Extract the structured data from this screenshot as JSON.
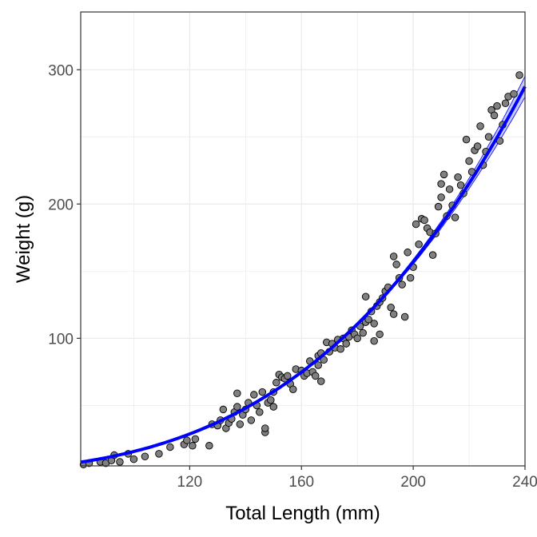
{
  "chart_data": {
    "type": "scatter",
    "title": "",
    "xlabel": "Total Length (mm)",
    "ylabel": "Weight (g)",
    "xlim": [
      81,
      240
    ],
    "ylim": [
      5,
      343
    ],
    "x_ticks": [
      120,
      160,
      200,
      240
    ],
    "y_ticks": [
      100,
      200,
      300
    ],
    "grid": true,
    "theme": "bw",
    "colors": {
      "points_fill": "#808080",
      "points_edge": "#000000",
      "fit_line": "#0000ff",
      "ci_band": "#9a9aff",
      "grid": "#ebebeb",
      "panel_border": "#333333"
    },
    "points": [
      [
        82,
        6
      ],
      [
        84,
        7
      ],
      [
        88,
        8
      ],
      [
        90,
        7
      ],
      [
        92,
        9
      ],
      [
        93,
        13
      ],
      [
        95,
        8
      ],
      [
        98,
        14
      ],
      [
        100,
        10
      ],
      [
        104,
        12
      ],
      [
        109,
        14
      ],
      [
        113,
        19
      ],
      [
        118,
        21
      ],
      [
        119,
        24
      ],
      [
        121,
        20
      ],
      [
        122,
        25
      ],
      [
        127,
        20
      ],
      [
        128,
        36
      ],
      [
        130,
        35
      ],
      [
        131,
        39
      ],
      [
        132,
        47
      ],
      [
        133,
        33
      ],
      [
        134,
        37
      ],
      [
        135,
        40
      ],
      [
        136,
        45
      ],
      [
        137,
        59
      ],
      [
        137,
        49
      ],
      [
        138,
        36
      ],
      [
        139,
        43
      ],
      [
        140,
        47
      ],
      [
        141,
        52
      ],
      [
        142,
        39
      ],
      [
        143,
        58
      ],
      [
        144,
        50
      ],
      [
        145,
        45
      ],
      [
        146,
        60
      ],
      [
        147,
        30
      ],
      [
        147,
        33
      ],
      [
        148,
        52
      ],
      [
        149,
        54
      ],
      [
        150,
        49
      ],
      [
        150,
        60
      ],
      [
        151,
        67
      ],
      [
        152,
        73
      ],
      [
        153,
        71
      ],
      [
        154,
        70
      ],
      [
        155,
        72
      ],
      [
        156,
        66
      ],
      [
        157,
        62
      ],
      [
        158,
        77
      ],
      [
        160,
        76
      ],
      [
        161,
        72
      ],
      [
        162,
        74
      ],
      [
        163,
        83
      ],
      [
        164,
        75
      ],
      [
        165,
        72
      ],
      [
        166,
        80
      ],
      [
        166,
        87
      ],
      [
        167,
        68
      ],
      [
        167,
        89
      ],
      [
        168,
        84
      ],
      [
        169,
        97
      ],
      [
        170,
        90
      ],
      [
        171,
        96
      ],
      [
        172,
        93
      ],
      [
        173,
        99
      ],
      [
        174,
        92
      ],
      [
        175,
        100
      ],
      [
        176,
        96
      ],
      [
        177,
        101
      ],
      [
        178,
        106
      ],
      [
        179,
        103
      ],
      [
        180,
        100
      ],
      [
        181,
        109
      ],
      [
        182,
        104
      ],
      [
        183,
        131
      ],
      [
        183,
        112
      ],
      [
        184,
        114
      ],
      [
        185,
        120
      ],
      [
        186,
        111
      ],
      [
        186,
        98
      ],
      [
        187,
        124
      ],
      [
        188,
        127
      ],
      [
        188,
        103
      ],
      [
        189,
        130
      ],
      [
        190,
        135
      ],
      [
        191,
        138
      ],
      [
        192,
        123
      ],
      [
        193,
        118
      ],
      [
        193,
        161
      ],
      [
        194,
        155
      ],
      [
        195,
        145
      ],
      [
        196,
        140
      ],
      [
        197,
        116
      ],
      [
        198,
        164
      ],
      [
        199,
        145
      ],
      [
        200,
        153
      ],
      [
        201,
        185
      ],
      [
        202,
        170
      ],
      [
        203,
        189
      ],
      [
        204,
        188
      ],
      [
        205,
        182
      ],
      [
        206,
        179
      ],
      [
        207,
        162
      ],
      [
        208,
        178
      ],
      [
        209,
        198
      ],
      [
        210,
        205
      ],
      [
        210,
        215
      ],
      [
        211,
        222
      ],
      [
        212,
        191
      ],
      [
        213,
        211
      ],
      [
        214,
        199
      ],
      [
        215,
        190
      ],
      [
        216,
        220
      ],
      [
        217,
        214
      ],
      [
        218,
        208
      ],
      [
        219,
        248
      ],
      [
        220,
        232
      ],
      [
        221,
        224
      ],
      [
        222,
        240
      ],
      [
        223,
        243
      ],
      [
        224,
        258
      ],
      [
        225,
        229
      ],
      [
        226,
        239
      ],
      [
        227,
        250
      ],
      [
        228,
        270
      ],
      [
        229,
        266
      ],
      [
        230,
        273
      ],
      [
        231,
        247
      ],
      [
        232,
        259
      ],
      [
        233,
        275
      ],
      [
        234,
        280
      ],
      [
        236,
        282
      ],
      [
        238,
        296
      ]
    ],
    "fit": {
      "model": "power",
      "a": 3.6e-06,
      "b": 3.32,
      "ci_halfwidth_pct": 2.5
    }
  }
}
